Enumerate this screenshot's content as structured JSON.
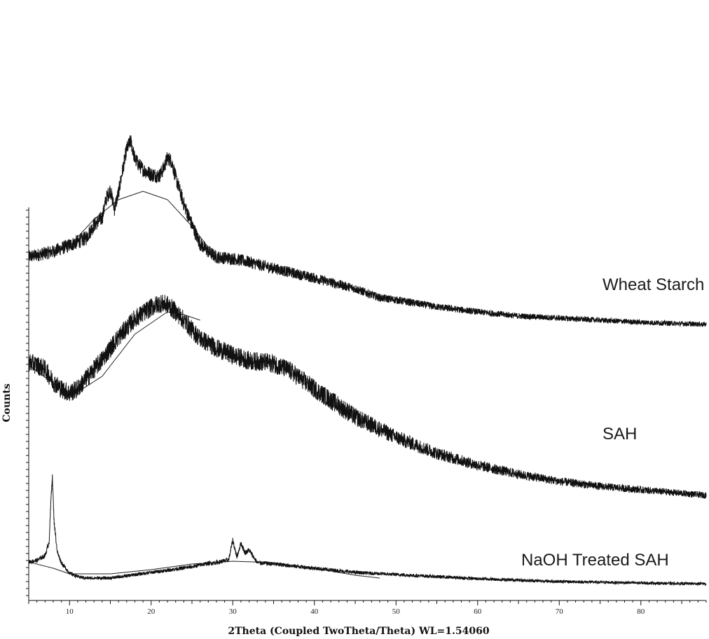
{
  "chart_data": {
    "type": "line",
    "title": "",
    "xlabel": "2Theta (Coupled TwoTheta/Theta) WL=1.54060",
    "ylabel": "Counts",
    "xlim": [
      5,
      88
    ],
    "x_ticks": [
      10,
      20,
      30,
      40,
      50,
      60,
      70,
      80
    ],
    "y_ticks_labeled": false,
    "grid": false,
    "legend": "inline-right",
    "series_color": "#111111",
    "series": [
      {
        "name": "Wheat Starch",
        "label": "Wheat Starch",
        "x": [
          5,
          8,
          10,
          12,
          13,
          14,
          14.5,
          15,
          15.5,
          16,
          16.5,
          17,
          17.5,
          18,
          18.5,
          19,
          20,
          21,
          21.5,
          22,
          22.5,
          23,
          24,
          25,
          26,
          27,
          28,
          30,
          32,
          35,
          40,
          45,
          48,
          50,
          55,
          60,
          65,
          70,
          75,
          80,
          85,
          88
        ],
        "y": [
          96.5,
          104,
          113,
          123,
          142,
          152,
          180,
          192,
          165,
          188,
          220,
          250,
          262,
          236,
          228,
          221,
          214,
          212,
          222,
          238,
          233,
          210,
          172,
          142,
          115,
          104,
          96,
          94,
          89,
          80,
          66,
          51,
          38,
          35,
          25,
          18,
          12,
          9,
          6,
          3,
          1,
          0
        ]
      },
      {
        "name": "SAH",
        "label": "SAH",
        "x": [
          5,
          6,
          7,
          8,
          9,
          10,
          11,
          12,
          14,
          16,
          18,
          20,
          21,
          22,
          23,
          24,
          25,
          26,
          28,
          30,
          32,
          34,
          35,
          37,
          40,
          45,
          50,
          55,
          60,
          65,
          70,
          75,
          80,
          85,
          88
        ],
        "y": [
          190,
          186,
          180,
          162,
          152,
          146,
          152,
          166,
          194,
          226,
          252,
          268,
          274,
          272,
          262,
          250,
          236,
          224,
          210,
          200,
          192,
          190,
          188,
          178,
          152,
          112,
          83,
          60,
          43,
          30,
          20,
          13,
          8,
          3,
          0
        ]
      },
      {
        "name": "NaOH Treated SAH",
        "label": "NaOH Treated SAH",
        "x": [
          5,
          6,
          7,
          7.5,
          7.8,
          7.9,
          8.1,
          8.5,
          9,
          10,
          11,
          12,
          15,
          20,
          25,
          26.5,
          28,
          29.5,
          30,
          30.5,
          31,
          31.5,
          32,
          33,
          35,
          40,
          45,
          50,
          55,
          60,
          65,
          70,
          75,
          80,
          85,
          88
        ],
        "y": [
          31,
          33,
          40,
          60,
          140,
          150,
          90,
          45,
          30,
          15,
          10,
          8,
          8,
          16,
          24,
          28,
          30,
          34,
          62,
          38,
          58,
          44,
          48,
          30,
          28,
          22,
          16,
          13,
          10,
          7,
          5,
          3,
          2,
          1,
          0,
          0
        ]
      }
    ]
  }
}
